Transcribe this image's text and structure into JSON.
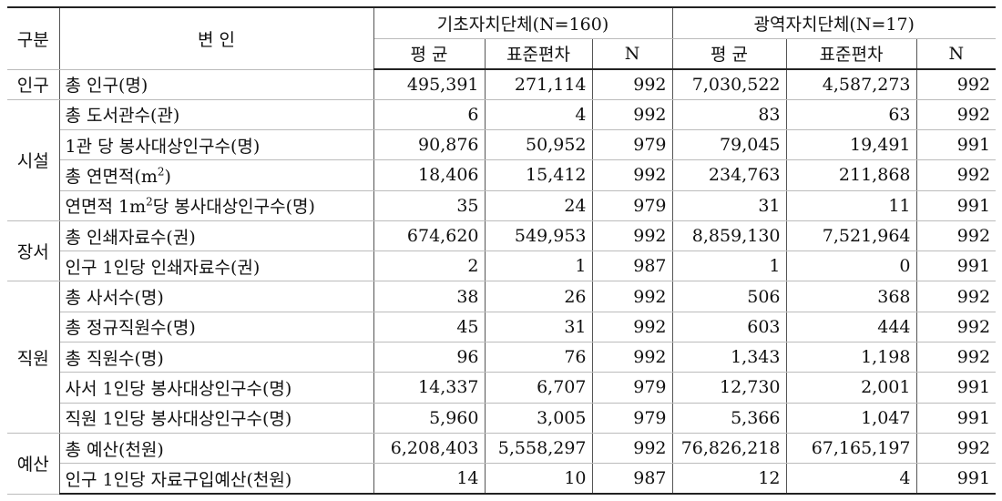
{
  "table": {
    "header": {
      "group_col": "구분",
      "var_col": "변 인",
      "basic": "기초자치단체(N=160)",
      "metro": "광역자치단체(N=17)",
      "mean": "평 균",
      "sd": "표준편차",
      "n": "N"
    },
    "groups": [
      {
        "name": "인구",
        "rows": [
          {
            "label": "총 인구(명)",
            "b_mean": "495,391",
            "b_sd": "271,114",
            "b_n": "992",
            "m_mean": "7,030,522",
            "m_sd": "4,587,273",
            "m_n": "992"
          }
        ]
      },
      {
        "name": "시설",
        "rows": [
          {
            "label": "총 도서관수(관)",
            "b_mean": "6",
            "b_sd": "4",
            "b_n": "992",
            "m_mean": "83",
            "m_sd": "63",
            "m_n": "992"
          },
          {
            "label": "1관 당 봉사대상인구수(명)",
            "b_mean": "90,876",
            "b_sd": "50,952",
            "b_n": "979",
            "m_mean": "79,045",
            "m_sd": "19,491",
            "m_n": "991"
          },
          {
            "label": "총 연면적(m",
            "label_sup": "2",
            "label_after": ")",
            "b_mean": "18,406",
            "b_sd": "15,412",
            "b_n": "992",
            "m_mean": "234,763",
            "m_sd": "211,868",
            "m_n": "992"
          },
          {
            "label": "연면적 1m",
            "label_sup": "2",
            "label_after": "당 봉사대상인구수(명)",
            "b_mean": "35",
            "b_sd": "24",
            "b_n": "979",
            "m_mean": "31",
            "m_sd": "11",
            "m_n": "991"
          }
        ]
      },
      {
        "name": "장서",
        "rows": [
          {
            "label": "총 인쇄자료수(권)",
            "b_mean": "674,620",
            "b_sd": "549,953",
            "b_n": "992",
            "m_mean": "8,859,130",
            "m_sd": "7,521,964",
            "m_n": "992"
          },
          {
            "label": "인구 1인당 인쇄자료수(권)",
            "b_mean": "2",
            "b_sd": "1",
            "b_n": "987",
            "m_mean": "1",
            "m_sd": "0",
            "m_n": "991"
          }
        ]
      },
      {
        "name": "직원",
        "rows": [
          {
            "label": "총 사서수(명)",
            "b_mean": "38",
            "b_sd": "26",
            "b_n": "992",
            "m_mean": "506",
            "m_sd": "368",
            "m_n": "992"
          },
          {
            "label": "총 정규직원수(명)",
            "b_mean": "45",
            "b_sd": "31",
            "b_n": "992",
            "m_mean": "603",
            "m_sd": "444",
            "m_n": "992"
          },
          {
            "label": "총 직원수(명)",
            "b_mean": "96",
            "b_sd": "76",
            "b_n": "992",
            "m_mean": "1,343",
            "m_sd": "1,198",
            "m_n": "992"
          },
          {
            "label": "사서 1인당 봉사대상인구수(명)",
            "b_mean": "14,337",
            "b_sd": "6,707",
            "b_n": "979",
            "m_mean": "12,730",
            "m_sd": "2,001",
            "m_n": "991"
          },
          {
            "label": "직원 1인당 봉사대상인구수(명)",
            "b_mean": "5,960",
            "b_sd": "3,005",
            "b_n": "979",
            "m_mean": "5,366",
            "m_sd": "1,047",
            "m_n": "991"
          }
        ]
      },
      {
        "name": "예산",
        "rows": [
          {
            "label": "총 예산(천원)",
            "b_mean": "6,208,403",
            "b_sd": "5,558,297",
            "b_n": "992",
            "m_mean": "76,826,218",
            "m_sd": "67,165,197",
            "m_n": "992"
          },
          {
            "label": "인구 1인당 자료구입예산(천원)",
            "b_mean": "14",
            "b_sd": "10",
            "b_n": "987",
            "m_mean": "12",
            "m_sd": "4",
            "m_n": "991"
          }
        ]
      }
    ]
  }
}
